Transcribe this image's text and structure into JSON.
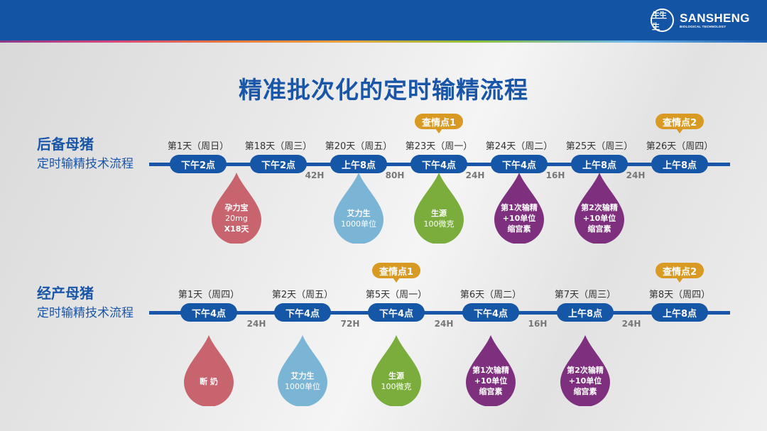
{
  "header": {
    "brand_name": "SANSHENG",
    "brand_sub": "BIOLOGICAL TECHNOLOGY",
    "logo_glyph": "生生生",
    "bg_color": "#1354a4"
  },
  "title": "精准批次化的定时输精流程",
  "colors": {
    "primary": "#1a56a8",
    "badge": "#d99a24",
    "drop_red": "#c8646e",
    "drop_blue": "#7ab5d6",
    "drop_green": "#7aad3c",
    "drop_purple": "#7e2f7e"
  },
  "sections": [
    {
      "name": "后备母猪",
      "subtitle": "定时输精技术流程",
      "steps": [
        {
          "day": "第1天（周日）",
          "time": "下午2点"
        },
        {
          "day": "第18天（周三）",
          "time": "下午2点"
        },
        {
          "day": "第20天（周五）",
          "time": "上午8点"
        },
        {
          "day": "第23天（周一）",
          "time": "下午4点",
          "badge": "查情点1"
        },
        {
          "day": "第24天（周二）",
          "time": "下午4点"
        },
        {
          "day": "第25天（周三）",
          "time": "上午8点"
        },
        {
          "day": "第26天（周四）",
          "time": "上午8点",
          "badge": "查情点2"
        }
      ],
      "gaps": [
        "42H",
        "80H",
        "24H",
        "16H",
        "24H"
      ],
      "drops": [
        {
          "color": "red",
          "lines": [
            "孕力宝",
            "20mg",
            "X18天"
          ]
        },
        {
          "color": "blue",
          "lines": [
            "艾力生",
            "1000单位"
          ]
        },
        {
          "color": "green",
          "lines": [
            "生源",
            "100微克"
          ]
        },
        {
          "color": "purple",
          "lines": [
            "第1次输精",
            "+10单位",
            "缩宫素"
          ]
        },
        {
          "color": "purple",
          "lines": [
            "第2次输精",
            "+10单位",
            "缩宫素"
          ]
        }
      ]
    },
    {
      "name": "经产母猪",
      "subtitle": "定时输精技术流程",
      "steps": [
        {
          "day": "第1天（周四）",
          "time": "下午4点"
        },
        {
          "day": "第2天（周五）",
          "time": "下午4点"
        },
        {
          "day": "第5天（周一）",
          "time": "下午4点",
          "badge": "查情点1"
        },
        {
          "day": "第6天（周二）",
          "time": "下午4点"
        },
        {
          "day": "第7天（周三）",
          "time": "上午8点"
        },
        {
          "day": "第8天（周四）",
          "time": "上午8点",
          "badge": "查情点2"
        }
      ],
      "gaps": [
        "24H",
        "72H",
        "24H",
        "16H",
        "24H"
      ],
      "drops": [
        {
          "color": "red",
          "lines": [
            "断 奶"
          ]
        },
        {
          "color": "blue",
          "lines": [
            "艾力生",
            "1000单位"
          ]
        },
        {
          "color": "green",
          "lines": [
            "生源",
            "100微克"
          ]
        },
        {
          "color": "purple",
          "lines": [
            "第1次输精",
            "+10单位",
            "缩宫素"
          ]
        },
        {
          "color": "purple",
          "lines": [
            "第2次输精",
            "+10单位",
            "缩宫素"
          ]
        }
      ]
    }
  ]
}
